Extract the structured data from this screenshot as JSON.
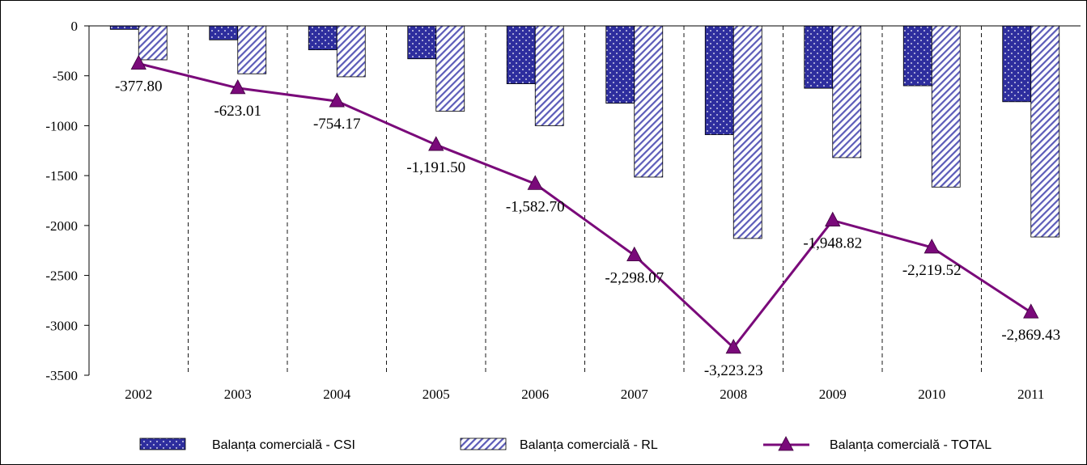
{
  "chart_data": {
    "type": "bar",
    "categories": [
      "2002",
      "2003",
      "2004",
      "2005",
      "2006",
      "2007",
      "2008",
      "2009",
      "2010",
      "2011"
    ],
    "series": [
      {
        "name": "Balanța comercială - CSI",
        "type": "bar",
        "values": [
          -35,
          -140,
          -240,
          -330,
          -580,
          -775,
          -1090,
          -625,
          -600,
          -760
        ],
        "color": "#2e2e9e"
      },
      {
        "name": "Balanța comercială - RL",
        "type": "bar",
        "values": [
          -340,
          -480,
          -510,
          -855,
          -1000,
          -1515,
          -2130,
          -1320,
          -1615,
          -2115
        ],
        "color": "#5b5bb8"
      },
      {
        "name": "Balanța comercială - TOTAL",
        "type": "line",
        "values": [
          -377.8,
          -623.01,
          -754.17,
          -1191.5,
          -1582.7,
          -2298.07,
          -3223.23,
          -1948.82,
          -2219.52,
          -2869.43
        ],
        "labels": [
          "-377.80",
          "-623.01",
          "-754.17",
          "-1,191.50",
          "-1,582.70",
          "-2,298.07",
          "-3,223.23",
          "-1,948.82",
          "-2,219.52",
          "-2,869.43"
        ],
        "color": "#7a0a7a"
      }
    ],
    "ylim": [
      -3500,
      0
    ],
    "yticks": [
      0,
      -500,
      -1000,
      -1500,
      -2000,
      -2500,
      -3000,
      -3500
    ],
    "ytick_labels": [
      "0",
      "-500",
      "-1000",
      "-1500",
      "-2000",
      "-2500",
      "-3000",
      "-3500"
    ],
    "grid": "vertical dashed between categories",
    "legend_position": "bottom",
    "title": "",
    "xlabel": "",
    "ylabel": ""
  }
}
